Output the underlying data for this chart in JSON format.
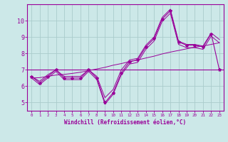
{
  "xlabel": "Windchill (Refroidissement éolien,°C)",
  "x": [
    0,
    1,
    2,
    3,
    4,
    5,
    6,
    7,
    8,
    9,
    10,
    11,
    12,
    13,
    14,
    15,
    16,
    17,
    18,
    19,
    20,
    21,
    22,
    23
  ],
  "y_main": [
    6.6,
    6.2,
    6.6,
    7.0,
    6.5,
    6.5,
    6.5,
    7.0,
    6.5,
    5.0,
    5.6,
    6.8,
    7.5,
    7.6,
    8.4,
    8.9,
    10.1,
    10.6,
    8.7,
    8.5,
    8.5,
    8.4,
    9.2,
    7.0
  ],
  "y_upper": [
    6.6,
    6.3,
    6.7,
    7.0,
    6.6,
    6.6,
    6.6,
    7.0,
    6.6,
    5.3,
    5.8,
    7.0,
    7.6,
    7.7,
    8.5,
    9.0,
    10.2,
    10.7,
    8.75,
    8.55,
    8.55,
    8.45,
    9.25,
    8.85
  ],
  "y_lower": [
    6.5,
    6.1,
    6.5,
    6.9,
    6.4,
    6.4,
    6.4,
    6.9,
    6.4,
    4.9,
    5.5,
    6.7,
    7.35,
    7.45,
    8.25,
    8.75,
    9.95,
    10.45,
    8.55,
    8.35,
    8.35,
    8.25,
    9.05,
    8.65
  ],
  "y_trend": [
    6.5,
    6.52,
    6.6,
    6.68,
    6.72,
    6.78,
    6.85,
    6.95,
    7.05,
    7.15,
    7.28,
    7.38,
    7.5,
    7.6,
    7.72,
    7.83,
    7.97,
    8.08,
    8.18,
    8.28,
    8.38,
    8.45,
    8.55,
    8.65
  ],
  "hline_y": 7.0,
  "hline_x_start": 0,
  "hline_x_end": 23,
  "line_color": "#990099",
  "bg_color": "#cce8e8",
  "grid_color": "#aacccc",
  "ylim": [
    4.5,
    11.0
  ],
  "yticks": [
    5,
    6,
    7,
    8,
    9,
    10
  ],
  "xlim": [
    -0.5,
    23.5
  ],
  "xticks": [
    0,
    1,
    2,
    3,
    4,
    5,
    6,
    7,
    8,
    9,
    10,
    11,
    12,
    13,
    14,
    15,
    16,
    17,
    18,
    19,
    20,
    21,
    22,
    23
  ]
}
